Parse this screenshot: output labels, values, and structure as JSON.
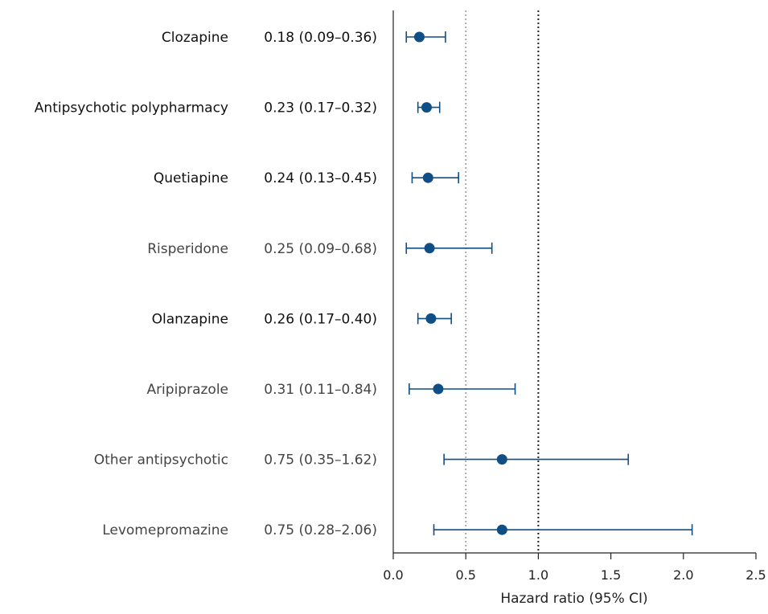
{
  "chart_data": {
    "type": "forest",
    "xlabel": "Hazard ratio (95% CI)",
    "xlim": [
      0,
      2.5
    ],
    "xticks": [
      0.0,
      0.5,
      1.0,
      1.5,
      2.0,
      2.5
    ],
    "xtick_labels": [
      "0.0",
      "0.5",
      "1.0",
      "1.5",
      "2.0",
      "2.5"
    ],
    "reference_lines": [
      {
        "x": 0.5,
        "style": "dotted",
        "color": "#aaaaaa"
      },
      {
        "x": 1.0,
        "style": "dotted",
        "color": "#222222"
      }
    ],
    "marker_color": "#0f4f86",
    "rows": [
      {
        "label": "Clozapine",
        "estimate_text": "0.18 (0.09–0.36)",
        "hr": 0.18,
        "lo": 0.09,
        "hi": 0.36,
        "emphasis": true
      },
      {
        "label": "Antipsychotic polypharmacy",
        "estimate_text": "0.23 (0.17–0.32)",
        "hr": 0.23,
        "lo": 0.17,
        "hi": 0.32,
        "emphasis": true
      },
      {
        "label": "Quetiapine",
        "estimate_text": "0.24 (0.13–0.45)",
        "hr": 0.24,
        "lo": 0.13,
        "hi": 0.45,
        "emphasis": true
      },
      {
        "label": "Risperidone",
        "estimate_text": "0.25 (0.09–0.68)",
        "hr": 0.25,
        "lo": 0.09,
        "hi": 0.68,
        "emphasis": false
      },
      {
        "label": "Olanzapine",
        "estimate_text": "0.26 (0.17–0.40)",
        "hr": 0.26,
        "lo": 0.17,
        "hi": 0.4,
        "emphasis": true
      },
      {
        "label": "Aripiprazole",
        "estimate_text": "0.31 (0.11–0.84)",
        "hr": 0.31,
        "lo": 0.11,
        "hi": 0.84,
        "emphasis": false
      },
      {
        "label": "Other antipsychotic",
        "estimate_text": "0.75 (0.35–1.62)",
        "hr": 0.75,
        "lo": 0.35,
        "hi": 1.62,
        "emphasis": false
      },
      {
        "label": "Levomepromazine",
        "estimate_text": "0.75 (0.28–2.06)",
        "hr": 0.75,
        "lo": 0.28,
        "hi": 2.06,
        "emphasis": false
      }
    ]
  }
}
